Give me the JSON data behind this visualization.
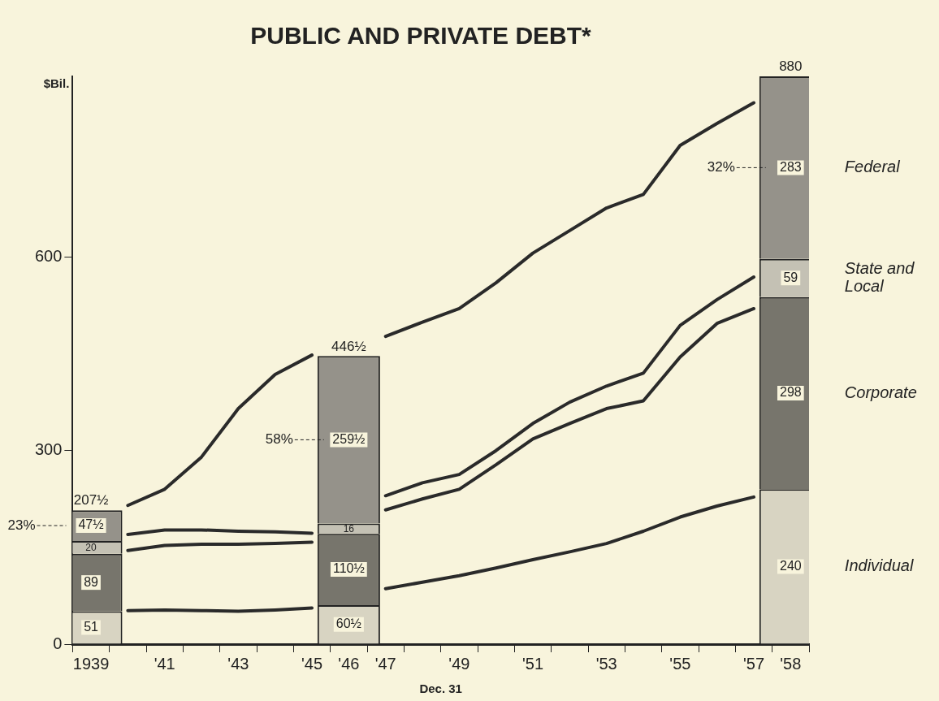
{
  "chart_data": {
    "type": "bar",
    "title": "PUBLIC AND PRIVATE DEBT*",
    "ylabel": "$Bil.",
    "categories": [
      "1939",
      null,
      "'41",
      null,
      "'43",
      null,
      "'45",
      "'46",
      "'47",
      null,
      "'49",
      null,
      "'51",
      null,
      "'53",
      null,
      "'55",
      null,
      "'57",
      "'58"
    ],
    "stacked": true,
    "legend": false,
    "grid": false,
    "marker": "none",
    "ylim": [
      0,
      880
    ],
    "yticks": [
      0,
      300,
      600
    ],
    "series": [
      {
        "name": "Individual",
        "type": "bar",
        "color": "#d8d4c2",
        "values": [
          51,
          null,
          null,
          null,
          null,
          null,
          null,
          60.5,
          null,
          null,
          null,
          null,
          null,
          null,
          null,
          null,
          null,
          null,
          null,
          240
        ],
        "value_labels": [
          "51",
          null,
          null,
          null,
          null,
          null,
          null,
          "60½",
          null,
          null,
          null,
          null,
          null,
          null,
          null,
          null,
          null,
          null,
          null,
          "240"
        ]
      },
      {
        "name": "Corporate",
        "type": "bar",
        "color": "#77756c",
        "values": [
          89,
          null,
          null,
          null,
          null,
          null,
          null,
          110.5,
          null,
          null,
          null,
          null,
          null,
          null,
          null,
          null,
          null,
          null,
          null,
          298
        ],
        "value_labels": [
          "89",
          null,
          null,
          null,
          null,
          null,
          null,
          "110½",
          null,
          null,
          null,
          null,
          null,
          null,
          null,
          null,
          null,
          null,
          null,
          "298"
        ]
      },
      {
        "name": "State and Local",
        "type": "bar",
        "color": "#c4c1b4",
        "values": [
          20,
          null,
          null,
          null,
          null,
          null,
          null,
          16,
          null,
          null,
          null,
          null,
          null,
          null,
          null,
          null,
          null,
          null,
          null,
          59
        ],
        "value_labels": [
          "20",
          null,
          null,
          null,
          null,
          null,
          null,
          "16",
          null,
          null,
          null,
          null,
          null,
          null,
          null,
          null,
          null,
          null,
          null,
          "59"
        ]
      },
      {
        "name": "Federal",
        "type": "bar",
        "color": "#95928a",
        "values": [
          47.5,
          null,
          null,
          null,
          null,
          null,
          null,
          259.5,
          null,
          null,
          null,
          null,
          null,
          null,
          null,
          null,
          null,
          null,
          null,
          283
        ],
        "value_labels": [
          "47½",
          null,
          null,
          null,
          null,
          null,
          null,
          "259½",
          null,
          null,
          null,
          null,
          null,
          null,
          null,
          null,
          null,
          null,
          null,
          "283"
        ]
      },
      {
        "type": "line",
        "color": "#2a2a2a",
        "values": [
          null,
          52,
          53,
          52,
          51,
          53,
          56,
          null,
          86,
          96,
          106,
          118,
          131,
          143,
          156,
          175,
          197,
          214,
          228,
          null
        ]
      },
      {
        "type": "line",
        "color": "#2a2a2a",
        "values": [
          null,
          145,
          153,
          155,
          155,
          156,
          158,
          null,
          208,
          225,
          240,
          278,
          318,
          342,
          365,
          377,
          445,
          497,
          520,
          null
        ]
      },
      {
        "type": "line",
        "color": "#2a2a2a",
        "values": [
          null,
          170,
          177,
          177,
          175,
          174,
          172,
          null,
          230,
          250,
          263,
          300,
          342,
          375,
          400,
          420,
          494,
          534,
          569,
          null
        ]
      },
      {
        "type": "line",
        "color": "#2a2a2a",
        "values": [
          null,
          215,
          240,
          290,
          365,
          418,
          448,
          null,
          477,
          499,
          520,
          560,
          606,
          641,
          676,
          697,
          773,
          807,
          839,
          null
        ]
      }
    ],
    "totals": [
      "207½",
      null,
      null,
      null,
      null,
      null,
      null,
      "446½",
      null,
      null,
      null,
      null,
      null,
      null,
      null,
      null,
      null,
      null,
      null,
      "880"
    ],
    "annotations": [
      "23%",
      "58%",
      "32%",
      "Dec. 31"
    ]
  }
}
